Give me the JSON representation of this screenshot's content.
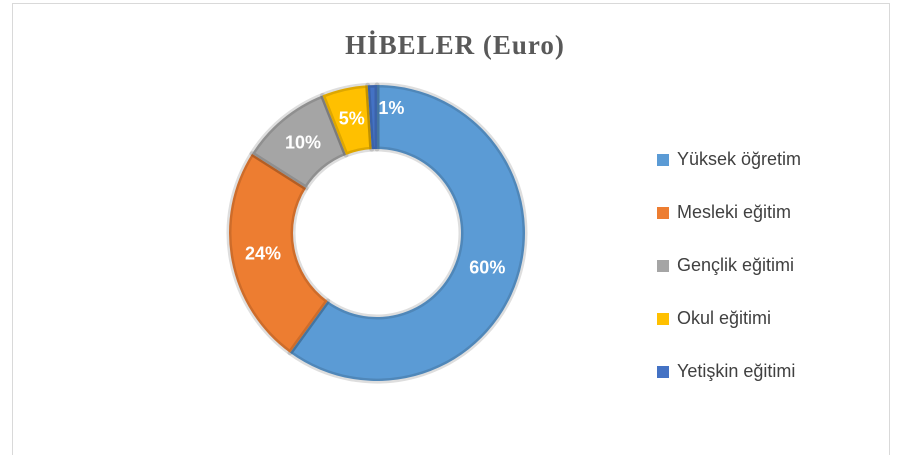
{
  "chart_data": {
    "type": "donut",
    "title": "HİBELER (Euro)",
    "categories": [
      "Yüksek öğretim",
      "Mesleki eğitim",
      "Gençlik eğitimi",
      "Okul eğitimi",
      "Yetişkin eğitimi"
    ],
    "values": [
      60,
      24,
      10,
      5,
      1
    ],
    "value_labels": [
      "60%",
      "24%",
      "10%",
      "5%",
      "1%"
    ],
    "colors": [
      "#5b9bd5",
      "#ed7d31",
      "#a5a5a5",
      "#ffc000",
      "#4472c4"
    ],
    "legend": "right"
  }
}
